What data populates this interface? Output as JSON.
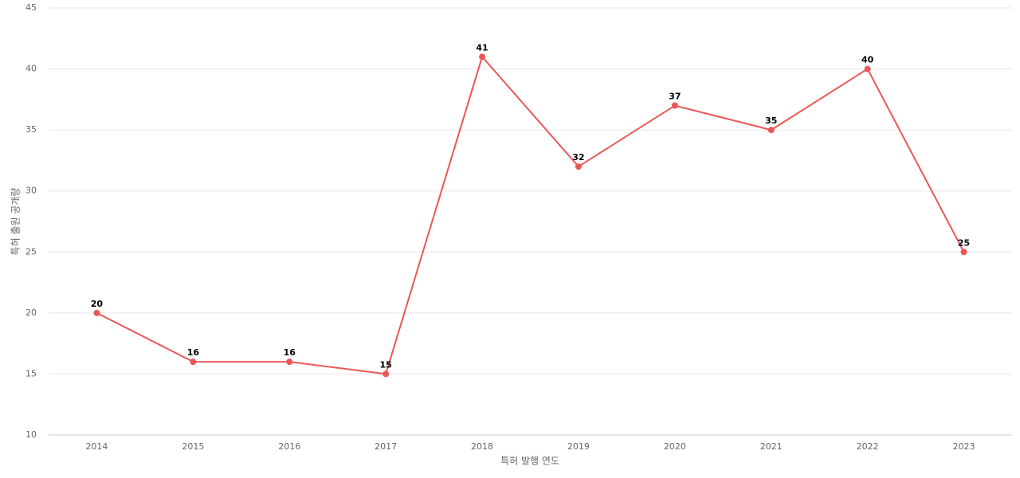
{
  "chart_data": {
    "type": "line",
    "x_label": "특허 발행 연도",
    "y_label": "특허 출원 공개량",
    "categories": [
      "2014",
      "2015",
      "2016",
      "2017",
      "2018",
      "2019",
      "2020",
      "2021",
      "2022",
      "2023"
    ],
    "series": [
      {
        "color": "#eb5757",
        "values": [
          20,
          16,
          16,
          15,
          41,
          32,
          37,
          35,
          40,
          25
        ]
      }
    ],
    "ylim": [
      10,
      45
    ],
    "yticks": [
      10,
      15,
      20,
      25,
      30,
      35,
      40,
      45
    ],
    "grid": true
  }
}
